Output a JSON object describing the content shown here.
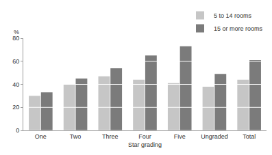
{
  "chart_data": {
    "type": "bar",
    "x_label": "Star grading",
    "y_label": "%",
    "categories": [
      "One",
      "Two",
      "Three",
      "Four",
      "Five",
      "Ungraded",
      "Total"
    ],
    "series": [
      {
        "name": "5 to 14 rooms",
        "color": "#c6c6c6",
        "values": [
          30,
          40,
          47,
          44,
          41,
          38,
          44
        ]
      },
      {
        "name": "15 or more rooms",
        "color": "#7b7b7b",
        "values": [
          33,
          45,
          54,
          65,
          73,
          49,
          61
        ]
      }
    ],
    "ylim": [
      0,
      80
    ],
    "yticks": [
      0,
      20,
      40,
      60,
      80
    ],
    "grid": true,
    "legend": "top right"
  }
}
